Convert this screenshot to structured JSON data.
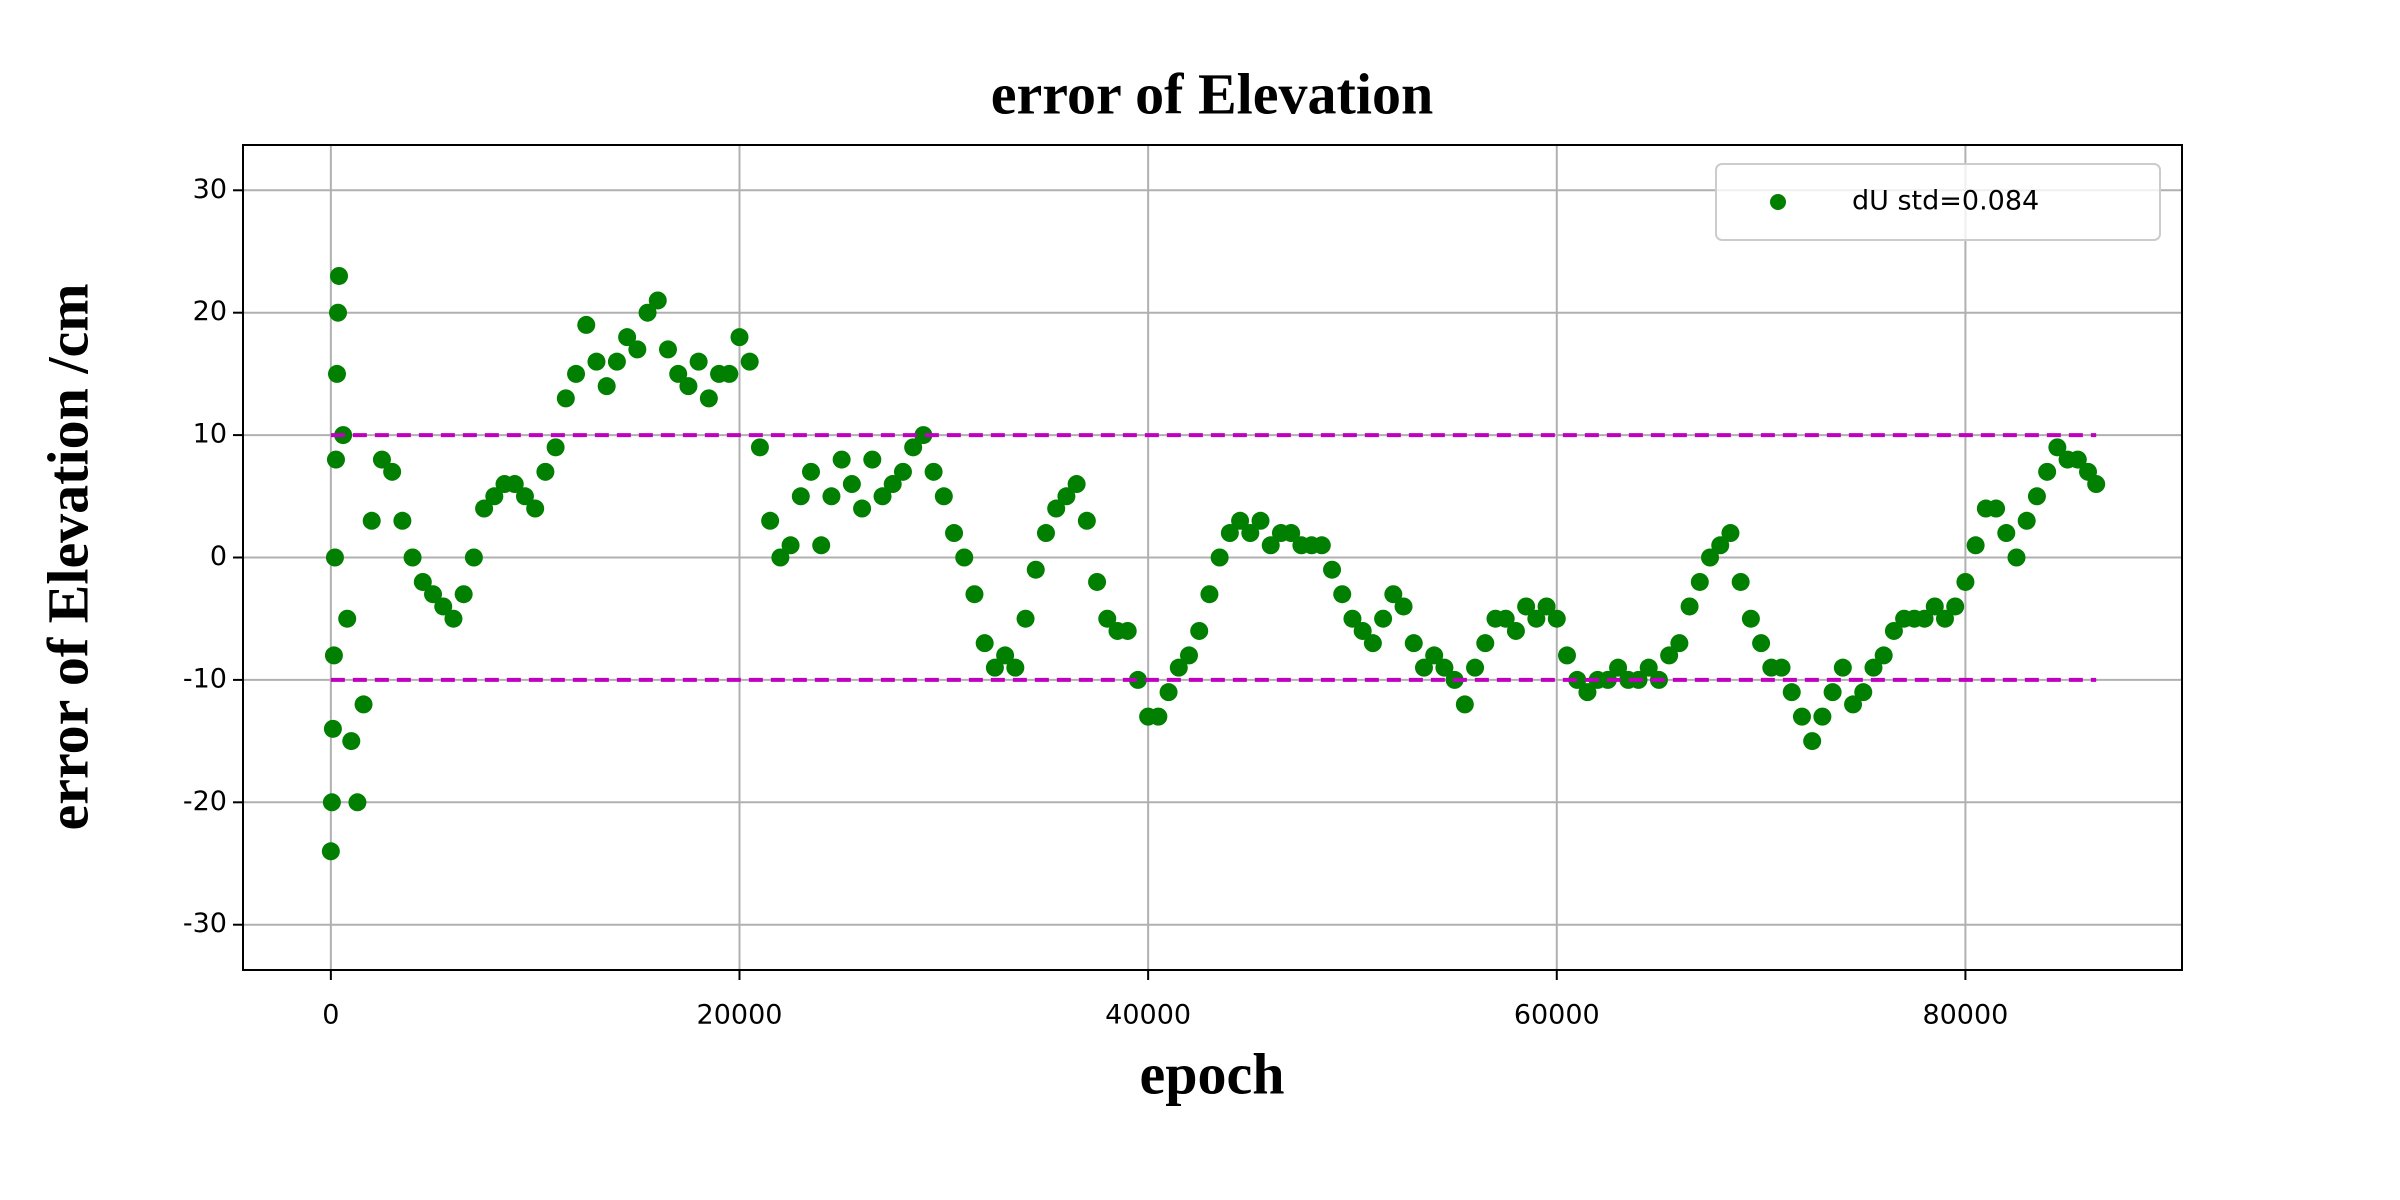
{
  "chart_data": {
    "type": "scatter",
    "title": "error of Elevation",
    "xlabel": "epoch",
    "ylabel": "error of Elevation /cm",
    "xlim": [
      -4300,
      90600
    ],
    "ylim": [
      -33.7,
      33.7
    ],
    "xticks": [
      0,
      20000,
      40000,
      60000,
      80000
    ],
    "yticks": [
      -30,
      -20,
      -10,
      0,
      10,
      20,
      30
    ],
    "grid": true,
    "legend": "upper right",
    "hlines": {
      "values": [
        10,
        -10
      ],
      "color": "#bf00bf",
      "x": [
        0,
        86400
      ]
    },
    "series": [
      {
        "name": "dU std=0.084",
        "color": "#007f00",
        "x": [
          0,
          50,
          100,
          150,
          200,
          250,
          300,
          350,
          400,
          600,
          800,
          1000,
          1300,
          1600,
          2000,
          2500,
          3000,
          3500,
          4000,
          4500,
          5000,
          5500,
          6000,
          6500,
          7000,
          7500,
          8000,
          8500,
          9000,
          9500,
          10000,
          10500,
          11000,
          11500,
          12000,
          12500,
          13000,
          13500,
          14000,
          14500,
          15000,
          15500,
          16000,
          16500,
          17000,
          17500,
          18000,
          18500,
          19000,
          19500,
          20000,
          20500,
          21000,
          21500,
          22000,
          22500,
          23000,
          23500,
          24000,
          24500,
          25000,
          25500,
          26000,
          26500,
          27000,
          27500,
          28000,
          28500,
          29000,
          29500,
          30000,
          30500,
          31000,
          31500,
          32000,
          32500,
          33000,
          33500,
          34000,
          34500,
          35000,
          35500,
          36000,
          36500,
          37000,
          37500,
          38000,
          38500,
          39000,
          39500,
          40000,
          40500,
          41000,
          41500,
          42000,
          42500,
          43000,
          43500,
          44000,
          44500,
          45000,
          45500,
          46000,
          46500,
          47000,
          47500,
          48000,
          48500,
          49000,
          49500,
          50000,
          50500,
          51000,
          51500,
          52000,
          52500,
          53000,
          53500,
          54000,
          54500,
          55000,
          55500,
          56000,
          56500,
          57000,
          57500,
          58000,
          58500,
          59000,
          59500,
          60000,
          60500,
          61000,
          61500,
          62000,
          62500,
          63000,
          63500,
          64000,
          64500,
          65000,
          65500,
          66000,
          66500,
          67000,
          67500,
          68000,
          68500,
          69000,
          69500,
          70000,
          70500,
          71000,
          71500,
          72000,
          72500,
          73000,
          73500,
          74000,
          74500,
          75000,
          75500,
          76000,
          76500,
          77000,
          77500,
          78000,
          78500,
          79000,
          79500,
          80000,
          80500,
          81000,
          81500,
          82000,
          82500,
          83000,
          83500,
          84000,
          84500,
          85000,
          85500,
          86000,
          86400
        ],
        "values": [
          -24,
          -20,
          -14,
          -8,
          0,
          8,
          15,
          20,
          23,
          10,
          -5,
          -15,
          -20,
          -12,
          3,
          8,
          7,
          3,
          0,
          -2,
          -3,
          -4,
          -5,
          -3,
          0,
          4,
          5,
          6,
          6,
          5,
          4,
          7,
          9,
          13,
          15,
          19,
          16,
          14,
          16,
          18,
          17,
          20,
          21,
          17,
          15,
          14,
          16,
          13,
          15,
          15,
          18,
          16,
          9,
          3,
          0,
          1,
          5,
          7,
          1,
          5,
          8,
          6,
          4,
          8,
          5,
          6,
          7,
          9,
          10,
          7,
          5,
          2,
          0,
          -3,
          -7,
          -9,
          -8,
          -9,
          -5,
          -1,
          2,
          4,
          5,
          6,
          3,
          -2,
          -5,
          -6,
          -6,
          -10,
          -13,
          -13,
          -11,
          -9,
          -8,
          -6,
          -3,
          0,
          2,
          3,
          2,
          3,
          1,
          2,
          2,
          1,
          1,
          1,
          -1,
          -3,
          -5,
          -6,
          -7,
          -5,
          -3,
          -4,
          -7,
          -9,
          -8,
          -9,
          -10,
          -12,
          -9,
          -7,
          -5,
          -5,
          -6,
          -4,
          -5,
          -4,
          -5,
          -8,
          -10,
          -11,
          -10,
          -10,
          -9,
          -10,
          -10,
          -9,
          -10,
          -8,
          -7,
          -4,
          -2,
          0,
          1,
          2,
          -2,
          -5,
          -7,
          -9,
          -9,
          -11,
          -13,
          -15,
          -13,
          -11,
          -9,
          -12,
          -11,
          -9,
          -8,
          -6,
          -5,
          -5,
          -5,
          -4,
          -5,
          -4,
          -2,
          1,
          4,
          4,
          2,
          0,
          3,
          5,
          7,
          9,
          8,
          8,
          7,
          6
        ]
      }
    ]
  }
}
